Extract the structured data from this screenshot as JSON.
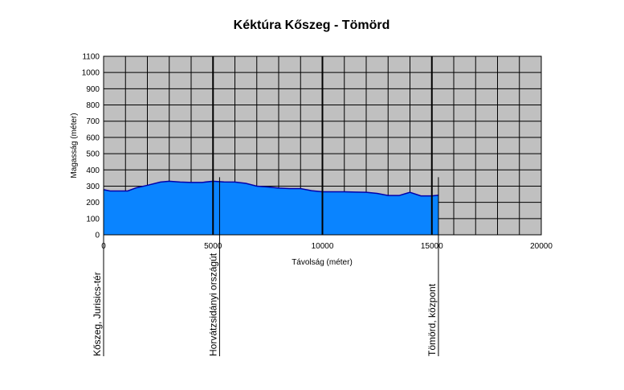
{
  "chart_data": {
    "type": "area",
    "title": "Kéktúra Kőszeg - Tömörd",
    "xlabel": "Távolság (méter)",
    "ylabel": "Magasság (méter)",
    "xlim": [
      0,
      20000
    ],
    "ylim": [
      0,
      1100
    ],
    "x_ticks": [
      "0",
      "5000",
      "10000",
      "15000",
      "20000"
    ],
    "y_ticks": [
      "0",
      "100",
      "200",
      "300",
      "400",
      "500",
      "600",
      "700",
      "800",
      "900",
      "1000",
      "1100"
    ],
    "grid": true,
    "colors": {
      "fill": "#0a84ff",
      "line": "#0000aa",
      "plot_bg": "#c0c0c0",
      "grid": "#000000"
    },
    "series": [
      {
        "x": [
          0,
          300,
          1100,
          1500,
          2000,
          2600,
          3000,
          3500,
          4000,
          4500,
          5000,
          5500,
          6000,
          6500,
          7000,
          7500,
          8000,
          8500,
          9000,
          9500,
          10000,
          10500,
          11000,
          11500,
          12000,
          12500,
          13000,
          13500,
          14000,
          14500,
          15000,
          15300
        ],
        "y": [
          278,
          270,
          270,
          290,
          305,
          325,
          330,
          325,
          323,
          323,
          330,
          326,
          325,
          317,
          300,
          295,
          288,
          285,
          285,
          272,
          265,
          265,
          265,
          263,
          262,
          255,
          242,
          242,
          262,
          240,
          240,
          244
        ]
      }
    ],
    "markers": [
      {
        "x": 0,
        "label": "Kőszeg, Jurisics-tér"
      },
      {
        "x": 5300,
        "label": "Horvátzsidányi országút"
      },
      {
        "x": 15300,
        "label": "Tömörd, központ"
      }
    ]
  }
}
